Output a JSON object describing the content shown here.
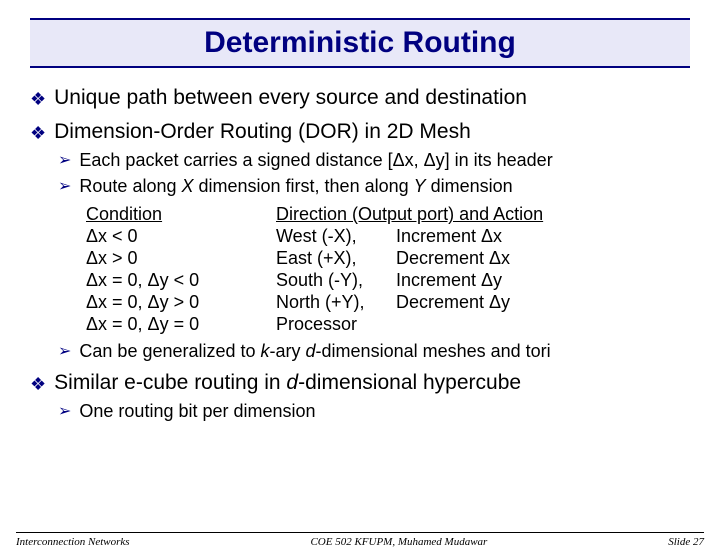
{
  "title": "Deterministic Routing",
  "colors": {
    "accent": "#000080",
    "title_bg": "#e8e8f8",
    "text": "#000000",
    "background": "#ffffff"
  },
  "bullets": {
    "b1": "Unique path between every source and destination",
    "b2": "Dimension-Order Routing (DOR) in 2D Mesh",
    "b2_sub1_a": "Each packet carries a signed distance [Δx, Δy] in its header",
    "b2_sub2_a": "Route along ",
    "b2_sub2_b": "X",
    "b2_sub2_c": " dimension first, then along ",
    "b2_sub2_d": "Y",
    "b2_sub2_e": " dimension",
    "b2_sub3_a": "Can be generalized to ",
    "b2_sub3_b": "k",
    "b2_sub3_c": "-ary ",
    "b2_sub3_d": "d",
    "b2_sub3_e": "-dimensional meshes and tori",
    "b3_a": "Similar e-cube routing in ",
    "b3_b": "d",
    "b3_c": "-dimensional hypercube",
    "b3_sub1": "One routing bit per dimension"
  },
  "table": {
    "header_cond": "Condition",
    "header_dir": "Direction (Output port) and Action",
    "rows": [
      {
        "cond": "Δx < 0",
        "dir": "West (-X),",
        "act": "Increment Δx"
      },
      {
        "cond": "Δx > 0",
        "dir": "East (+X),",
        "act": "Decrement Δx"
      },
      {
        "cond": "Δx = 0, Δy < 0",
        "dir": "South (-Y),",
        "act": "Increment Δy"
      },
      {
        "cond": "Δx = 0, Δy > 0",
        "dir": "North (+Y),",
        "act": "Decrement Δy"
      },
      {
        "cond": "Δx = 0, Δy = 0",
        "dir": "Processor",
        "act": ""
      }
    ]
  },
  "footer": {
    "left": "Interconnection Networks",
    "center": "COE 502 KFUPM, Muhamed Mudawar",
    "right": "Slide 27"
  },
  "glyphs": {
    "diamond": "❖",
    "arrow": "➢"
  }
}
